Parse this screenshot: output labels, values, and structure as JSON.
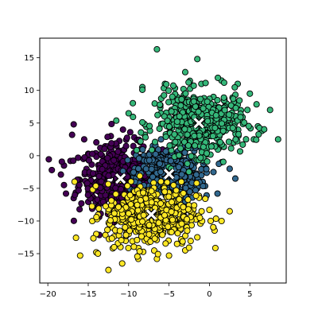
{
  "chart_data": {
    "type": "scatter",
    "title": "",
    "xlabel": "",
    "ylabel": "",
    "xlim": [
      -21,
      9.5
    ],
    "ylim": [
      -19.5,
      18
    ],
    "xticks": [
      -20,
      -15,
      -10,
      -5,
      0,
      5
    ],
    "xtick_labels": [
      "−20",
      "−15",
      "−10",
      "−5",
      "0",
      "5"
    ],
    "yticks": [
      15,
      10,
      5,
      0,
      -5,
      -10,
      -15
    ],
    "ytick_labels": [
      "15",
      "10",
      "5",
      "0",
      "−5",
      "−10",
      "−15"
    ],
    "grid": false,
    "legend": "none",
    "marker_edge_color": "#000000",
    "centroid_marker": "x",
    "centroid_color": "#ffffff",
    "series": [
      {
        "color": "#440154",
        "center": [
          -11.0,
          -3.5
        ],
        "spread": [
          3.0,
          3.0
        ],
        "points": [
          [
            -16.8,
            4.8
          ],
          [
            -17.0,
            3.2
          ],
          [
            -15.0,
            0.3
          ],
          [
            -18.0,
            -1.5
          ],
          [
            -19.5,
            -2.2
          ],
          [
            -18.0,
            -4.5
          ],
          [
            -16.8,
            -6.5
          ],
          [
            -14.3,
            -6.5
          ],
          [
            -13.8,
            -7.7
          ],
          [
            -12.0,
            -6.5
          ],
          [
            -11.0,
            -7.6
          ],
          [
            -9.5,
            -5.0
          ],
          [
            -9.0,
            -2.0
          ],
          [
            -8.5,
            1.0
          ],
          [
            -9.3,
            2.8
          ],
          [
            -10.7,
            4.0
          ],
          [
            -12.2,
            3.0
          ],
          [
            -13.5,
            1.2
          ],
          [
            -15.5,
            2.5
          ],
          [
            -14.0,
            -2.8
          ],
          [
            -12.5,
            -1.0
          ],
          [
            -10.0,
            -1.5
          ],
          [
            -8.2,
            -4.0
          ],
          [
            -9.8,
            3.6
          ],
          [
            -17.2,
            -0.8
          ],
          [
            -15.2,
            -4.0
          ],
          [
            -13.0,
            -5.0
          ],
          [
            -10.5,
            -6.0
          ],
          [
            -11.5,
            1.5
          ],
          [
            -12.8,
            -3.2
          ]
        ]
      },
      {
        "color": "#31688e",
        "center": [
          -5.0,
          -2.8
        ],
        "spread": [
          2.3,
          2.3
        ],
        "points": [
          [
            -8.0,
            3.2
          ],
          [
            -6.0,
            2.5
          ],
          [
            -3.5,
            2.0
          ],
          [
            -2.0,
            -0.5
          ],
          [
            -1.0,
            -3.0
          ],
          [
            -1.5,
            -5.0
          ],
          [
            -3.0,
            -7.0
          ],
          [
            -5.5,
            -7.8
          ],
          [
            -7.5,
            -5.8
          ],
          [
            -8.0,
            -1.5
          ],
          [
            -6.5,
            0.5
          ],
          [
            -4.0,
            -0.5
          ],
          [
            -2.5,
            -4.2
          ],
          [
            -5.0,
            -5.5
          ],
          [
            0.5,
            -2.5
          ],
          [
            1.5,
            -1.0
          ],
          [
            2.5,
            -2.0
          ],
          [
            3.2,
            -3.5
          ],
          [
            1.0,
            -5.8
          ],
          [
            -0.5,
            -6.5
          ],
          [
            -4.0,
            -2.5
          ],
          [
            -6.8,
            -3.5
          ],
          [
            -3.0,
            0.8
          ],
          [
            -1.8,
            1.5
          ],
          [
            -7.0,
            1.5
          ]
        ]
      },
      {
        "color": "#35b779",
        "center": [
          -1.3,
          5.0
        ],
        "spread": [
          3.2,
          2.8
        ],
        "points": [
          [
            -6.5,
            16.3
          ],
          [
            -1.5,
            14.8
          ],
          [
            -3.0,
            12.8
          ],
          [
            -5.5,
            11.0
          ],
          [
            -8.3,
            10.5
          ],
          [
            -8.3,
            10.1
          ],
          [
            -10.0,
            6.5
          ],
          [
            -8.0,
            3.2
          ],
          [
            -5.0,
            3.5
          ],
          [
            0.0,
            3.0
          ],
          [
            3.0,
            2.0
          ],
          [
            5.5,
            2.5
          ],
          [
            8.5,
            2.5
          ],
          [
            7.5,
            7.0
          ],
          [
            5.0,
            9.5
          ],
          [
            3.5,
            11.0
          ],
          [
            1.5,
            11.5
          ],
          [
            -1.0,
            11.0
          ],
          [
            -4.0,
            9.0
          ],
          [
            -2.0,
            7.0
          ],
          [
            1.0,
            6.5
          ],
          [
            4.0,
            6.0
          ],
          [
            6.0,
            4.5
          ],
          [
            2.0,
            4.0
          ],
          [
            -6.0,
            6.5
          ],
          [
            -0.5,
            1.8
          ],
          [
            3.5,
            7.8
          ],
          [
            -3.5,
            5.0
          ],
          [
            0.5,
            9.0
          ],
          [
            6.5,
            3.8
          ]
        ]
      },
      {
        "color": "#fde725",
        "center": [
          -7.2,
          -9.0
        ],
        "spread": [
          3.3,
          2.8
        ],
        "points": [
          [
            -16.0,
            -15.3
          ],
          [
            -14.0,
            -14.8
          ],
          [
            -13.8,
            -15.0
          ],
          [
            -12.5,
            -17.5
          ],
          [
            -10.8,
            -16.5
          ],
          [
            -8.8,
            -15.8
          ],
          [
            -6.5,
            -15.8
          ],
          [
            -5.0,
            -15.3
          ],
          [
            -3.0,
            -14.5
          ],
          [
            -1.5,
            -12.5
          ],
          [
            0.5,
            -11.0
          ],
          [
            1.5,
            -10.0
          ],
          [
            2.5,
            -8.5
          ],
          [
            0.0,
            -8.3
          ],
          [
            -2.0,
            -9.5
          ],
          [
            -4.0,
            -10.5
          ],
          [
            -6.0,
            -12.0
          ],
          [
            -8.0,
            -13.0
          ],
          [
            -10.0,
            -12.0
          ],
          [
            -12.0,
            -11.0
          ],
          [
            -14.0,
            -12.0
          ],
          [
            -14.5,
            -10.0
          ],
          [
            -12.5,
            -8.5
          ],
          [
            -10.0,
            -8.0
          ],
          [
            -7.0,
            -7.5
          ],
          [
            -4.5,
            -7.8
          ],
          [
            -9.5,
            -10.5
          ],
          [
            -5.5,
            -9.5
          ],
          [
            -11.0,
            -14.0
          ],
          [
            -3.5,
            -12.8
          ]
        ]
      }
    ],
    "centroids": [
      [
        -11.0,
        -3.5
      ],
      [
        -5.0,
        -2.8
      ],
      [
        -1.3,
        5.0
      ],
      [
        -7.2,
        -9.0
      ]
    ]
  }
}
